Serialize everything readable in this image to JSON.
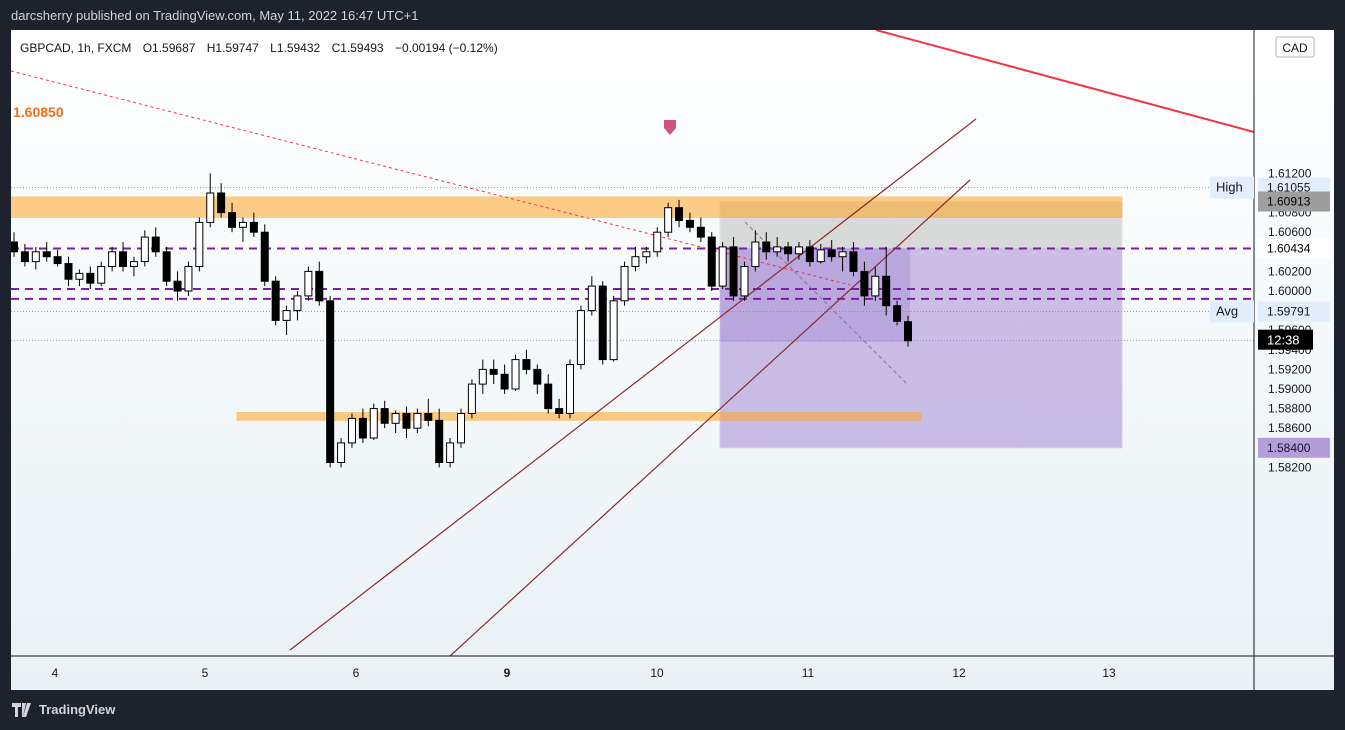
{
  "header": {
    "publisher_text": "darcsherry published on TradingView.com, May 11, 2022 16:47 UTC+1"
  },
  "legend": {
    "symbol": "GBPCAD, 1h, FXCM",
    "open": "O1.59687",
    "high": "H1.59747",
    "low": "L1.59432",
    "close": "C1.59493",
    "change": "−0.00194 (−0.12%)"
  },
  "footer": {
    "brand": "TradingView"
  },
  "colors": {
    "bull_fill": "#ffffff",
    "bear_fill": "#000000",
    "zone_orange": "#ffa726",
    "purple_dashed": "#7b1fa2",
    "position_purple": "#9575cd",
    "stop_gray": "#9e9e9e",
    "trendline_red": "#f23645",
    "channel_line": "#8b2a2a"
  },
  "chart_data": {
    "type": "candlestick",
    "currency": "CAD",
    "ylim": [
      1.581,
      1.6225
    ],
    "x_ticks": [
      {
        "label": "4",
        "bold": false
      },
      {
        "label": "5",
        "bold": false
      },
      {
        "label": "6",
        "bold": false
      },
      {
        "label": "9",
        "bold": true
      },
      {
        "label": "10",
        "bold": false
      },
      {
        "label": "11",
        "bold": false
      },
      {
        "label": "12",
        "bold": false
      },
      {
        "label": "13",
        "bold": false
      }
    ],
    "y_ticks": [
      "1.61200",
      "1.61000",
      "1.60800",
      "1.60600",
      "1.60200",
      "1.60000",
      "1.59600",
      "1.59400",
      "1.59200",
      "1.59000",
      "1.58800",
      "1.58600",
      "1.58200"
    ],
    "price_tags": {
      "high": {
        "label": "High",
        "value": "1.61055"
      },
      "stop": {
        "value": "1.60913"
      },
      "entry": {
        "value": "1.60434"
      },
      "avg": {
        "label": "Avg",
        "value": "1.59791"
      },
      "countdown": {
        "value": "12:38"
      },
      "target": {
        "value": "1.58400"
      }
    },
    "zone_label": "1.60850",
    "resistance_zone": [
      1.6075,
      1.6096
    ],
    "support_zone": [
      1.5868,
      1.5876
    ],
    "dashed_levels": [
      1.60434,
      1.6002,
      1.5992
    ],
    "short_position": {
      "entry": 1.60434,
      "stop": 1.60913,
      "target": 1.584
    },
    "candles_approx": [
      [
        1.605,
        1.606,
        1.6035,
        1.604
      ],
      [
        1.604,
        1.6048,
        1.6025,
        1.603
      ],
      [
        1.603,
        1.6045,
        1.6022,
        1.604
      ],
      [
        1.604,
        1.605,
        1.603,
        1.6035
      ],
      [
        1.6035,
        1.6042,
        1.6025,
        1.6028
      ],
      [
        1.6028,
        1.6035,
        1.6005,
        1.6012
      ],
      [
        1.6012,
        1.6022,
        1.6005,
        1.6018
      ],
      [
        1.6018,
        1.6025,
        1.6002,
        1.6008
      ],
      [
        1.6008,
        1.603,
        1.6005,
        1.6025
      ],
      [
        1.6025,
        1.6045,
        1.602,
        1.604
      ],
      [
        1.604,
        1.605,
        1.602,
        1.6025
      ],
      [
        1.6025,
        1.6035,
        1.6015,
        1.603
      ],
      [
        1.603,
        1.6062,
        1.6025,
        1.6055
      ],
      [
        1.6055,
        1.6065,
        1.6035,
        1.604
      ],
      [
        1.604,
        1.6045,
        1.6005,
        1.601
      ],
      [
        1.601,
        1.602,
        1.599,
        1.6
      ],
      [
        1.6,
        1.603,
        1.5995,
        1.6025
      ],
      [
        1.6025,
        1.6075,
        1.602,
        1.607
      ],
      [
        1.607,
        1.612,
        1.6065,
        1.61
      ],
      [
        1.61,
        1.611,
        1.6075,
        1.608
      ],
      [
        1.608,
        1.609,
        1.606,
        1.6065
      ],
      [
        1.6065,
        1.6075,
        1.605,
        1.607
      ],
      [
        1.607,
        1.608,
        1.6055,
        1.606
      ],
      [
        1.606,
        1.6068,
        1.6005,
        1.601
      ],
      [
        1.601,
        1.6015,
        1.5965,
        1.597
      ],
      [
        1.597,
        1.5985,
        1.5955,
        1.598
      ],
      [
        1.598,
        1.6,
        1.597,
        1.5995
      ],
      [
        1.5995,
        1.6025,
        1.599,
        1.602
      ],
      [
        1.602,
        1.603,
        1.5985,
        1.599
      ],
      [
        1.599,
        1.5995,
        1.582,
        1.5825
      ],
      [
        1.5825,
        1.585,
        1.582,
        1.5845
      ],
      [
        1.5845,
        1.5875,
        1.584,
        1.587
      ],
      [
        1.587,
        1.588,
        1.5845,
        1.585
      ],
      [
        1.585,
        1.5885,
        1.5848,
        1.588
      ],
      [
        1.588,
        1.5888,
        1.586,
        1.5865
      ],
      [
        1.5865,
        1.5878,
        1.5855,
        1.5875
      ],
      [
        1.5875,
        1.5882,
        1.585,
        1.586
      ],
      [
        1.586,
        1.588,
        1.5855,
        1.5875
      ],
      [
        1.5875,
        1.589,
        1.5862,
        1.5868
      ],
      [
        1.5868,
        1.588,
        1.582,
        1.5825
      ],
      [
        1.5825,
        1.585,
        1.582,
        1.5845
      ],
      [
        1.5845,
        1.588,
        1.584,
        1.5875
      ],
      [
        1.5875,
        1.591,
        1.587,
        1.5905
      ],
      [
        1.5905,
        1.593,
        1.5895,
        1.592
      ],
      [
        1.592,
        1.593,
        1.5905,
        1.5915
      ],
      [
        1.5915,
        1.5925,
        1.5895,
        1.59
      ],
      [
        1.59,
        1.5935,
        1.5898,
        1.593
      ],
      [
        1.593,
        1.594,
        1.5915,
        1.592
      ],
      [
        1.592,
        1.5925,
        1.5895,
        1.5905
      ],
      [
        1.5905,
        1.5915,
        1.5875,
        1.588
      ],
      [
        1.588,
        1.589,
        1.587,
        1.5875
      ],
      [
        1.5875,
        1.593,
        1.587,
        1.5925
      ],
      [
        1.5925,
        1.5985,
        1.592,
        1.598
      ],
      [
        1.598,
        1.6015,
        1.5975,
        1.6005
      ],
      [
        1.6005,
        1.601,
        1.5925,
        1.593
      ],
      [
        1.593,
        1.5995,
        1.5928,
        1.599
      ],
      [
        1.599,
        1.603,
        1.5985,
        1.6025
      ],
      [
        1.6025,
        1.6045,
        1.602,
        1.6035
      ],
      [
        1.6035,
        1.6045,
        1.6028,
        1.604
      ],
      [
        1.604,
        1.6065,
        1.6035,
        1.606
      ],
      [
        1.606,
        1.609,
        1.6055,
        1.6085
      ],
      [
        1.6085,
        1.6093,
        1.6065,
        1.6072
      ],
      [
        1.6072,
        1.608,
        1.606,
        1.6065
      ],
      [
        1.6065,
        1.6075,
        1.605,
        1.6055
      ],
      [
        1.6055,
        1.606,
        1.6,
        1.6005
      ],
      [
        1.6005,
        1.605,
        1.6002,
        1.6045
      ],
      [
        1.6045,
        1.6055,
        1.599,
        1.5995
      ],
      [
        1.5995,
        1.603,
        1.599,
        1.6025
      ],
      [
        1.6025,
        1.6062,
        1.602,
        1.605
      ],
      [
        1.605,
        1.606,
        1.6032,
        1.604
      ],
      [
        1.604,
        1.6055,
        1.6035,
        1.6045
      ],
      [
        1.6045,
        1.605,
        1.603,
        1.6038
      ],
      [
        1.6038,
        1.605,
        1.6032,
        1.6045
      ],
      [
        1.6045,
        1.6052,
        1.6025,
        1.603
      ],
      [
        1.603,
        1.6048,
        1.6028,
        1.6042
      ],
      [
        1.6042,
        1.6052,
        1.603,
        1.6035
      ],
      [
        1.6035,
        1.6045,
        1.602,
        1.604
      ],
      [
        1.604,
        1.605,
        1.6015,
        1.602
      ],
      [
        1.602,
        1.603,
        1.5985,
        1.5995
      ],
      [
        1.5995,
        1.6025,
        1.599,
        1.6015
      ],
      [
        1.6015,
        1.6045,
        1.5975,
        1.5985
      ],
      [
        1.5985,
        1.599,
        1.5965,
        1.5969
      ],
      [
        1.59687,
        1.59747,
        1.59432,
        1.59493
      ]
    ]
  }
}
